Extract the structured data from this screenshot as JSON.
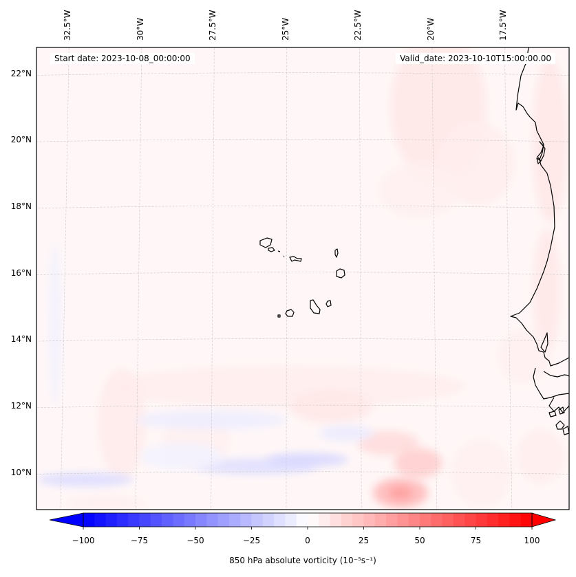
{
  "chart_data": {
    "type": "heatmap",
    "title": "",
    "variable": "850 hPa absolute vorticity",
    "units": "10^-5 s^-1",
    "start_date_label": "Start date: 2023-10-08_00:00:00",
    "valid_date_label": "Valid_date: 2023-10-10T15:00:00.00",
    "lon_ticks": [
      "32.5°W",
      "30°W",
      "27.5°W",
      "25°W",
      "22.5°W",
      "20°W",
      "17.5°W"
    ],
    "lon_tick_values": [
      -32.5,
      -30,
      -27.5,
      -25,
      -22.5,
      -20,
      -17.5
    ],
    "lat_ticks": [
      "22°N",
      "20°N",
      "18°N",
      "16°N",
      "14°N",
      "12°N",
      "10°N"
    ],
    "lat_tick_values": [
      22,
      20,
      18,
      16,
      14,
      12,
      10
    ],
    "extent": {
      "lon": [
        -33.3,
        -15.6
      ],
      "lat": [
        8.9,
        22.8
      ]
    },
    "gridlines": true,
    "colormap": "bwr",
    "colorbar": {
      "orientation": "horizontal",
      "placement": "bottom",
      "range": [
        -100,
        100
      ],
      "levels_step": 5,
      "extend": "both",
      "ticks": [
        -100,
        -75,
        -50,
        -25,
        0,
        25,
        50,
        75,
        100
      ],
      "tick_labels": [
        "−100",
        "−75",
        "−50",
        "−25",
        "0",
        "25",
        "50",
        "75",
        "100"
      ],
      "label": "850 hPa absolute vorticity (10⁻⁵s⁻¹)",
      "min_color": "#0000ff",
      "mid_color": "#ffffff",
      "max_color": "#ff0000"
    },
    "features": [
      {
        "name": "positive vorticity max",
        "lon": -21.2,
        "lat": 9.4,
        "value": 35
      },
      {
        "name": "positive vorticity secondary",
        "lon": -20.6,
        "lat": 10.3,
        "value": 20
      },
      {
        "name": "negative vorticity band",
        "lon": -25.5,
        "lat": 10.0,
        "value": -15
      },
      {
        "name": "negative vorticity band west",
        "lon": -31.5,
        "lat": 9.8,
        "value": -15
      },
      {
        "name": "weak positive background",
        "value": 3
      },
      {
        "name": "positive tongue north",
        "lon": -20.0,
        "lat": 21.0,
        "value": 10
      }
    ],
    "land": [
      "Cape Verde islands",
      "West African coast (Mauritania, Senegal, Gambia, Guinea-Bissau)"
    ]
  }
}
